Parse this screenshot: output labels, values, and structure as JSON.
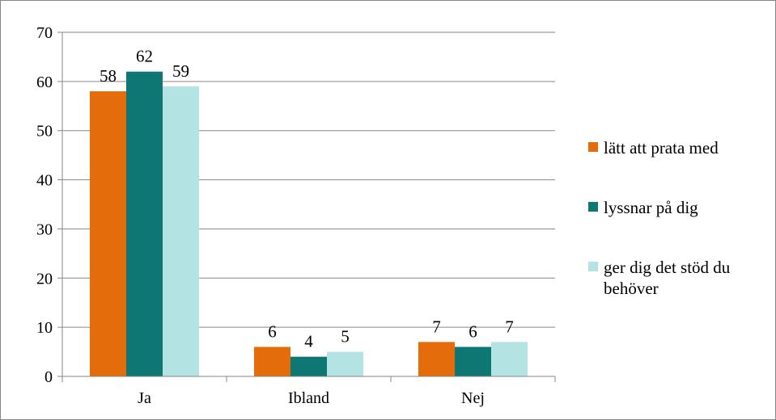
{
  "chart_data": {
    "type": "bar",
    "categories": [
      "Ja",
      "Ibland",
      "Nej"
    ],
    "series": [
      {
        "name": "lätt att prata med",
        "values": [
          58,
          6,
          7
        ],
        "color": "#E46C0A"
      },
      {
        "name": "lyssnar på dig",
        "values": [
          62,
          4,
          6
        ],
        "color": "#0E7774"
      },
      {
        "name": "ger dig det stöd du behöver",
        "legend_lines": [
          "ger dig det stöd du",
          "behöver"
        ],
        "values": [
          59,
          5,
          7
        ],
        "color": "#B3E3E2"
      }
    ],
    "ylim": [
      0,
      70
    ],
    "yticks": [
      0,
      10,
      20,
      30,
      40,
      50,
      60,
      70
    ],
    "grid": true,
    "legend_position": "right",
    "data_labels": true
  }
}
